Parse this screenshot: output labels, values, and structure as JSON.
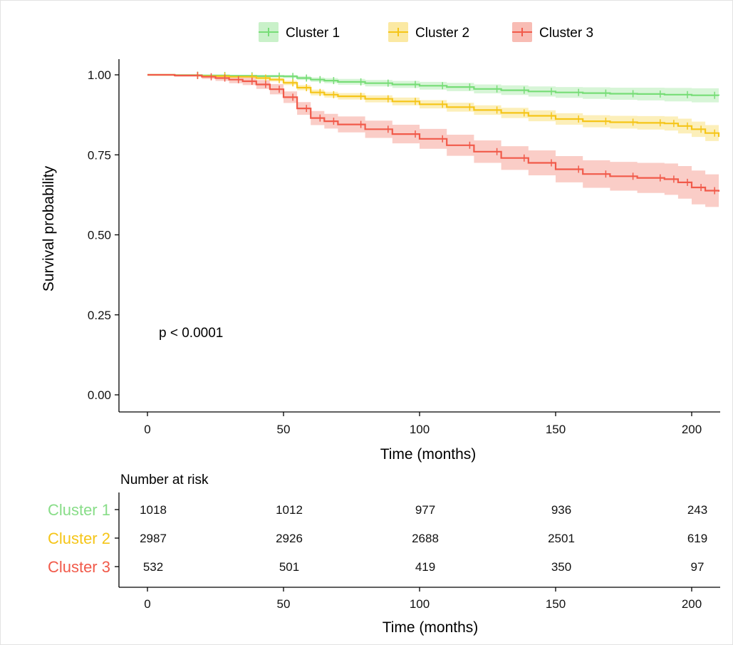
{
  "chart_data": [
    {
      "type": "line",
      "subtype": "kaplan-meier",
      "title": "",
      "xlabel": "Time (months)",
      "ylabel": "Survival probability",
      "xlim": [
        -20,
        210
      ],
      "ylim": [
        -0.03,
        1.05
      ],
      "x_ticks": [
        0,
        50,
        100,
        150,
        200
      ],
      "y_ticks": [
        0.0,
        0.25,
        0.5,
        0.75,
        1.0
      ],
      "y_tick_labels": [
        "0.00",
        "0.25",
        "0.50",
        "0.75",
        "1.00"
      ],
      "grid": false,
      "legend_position": "top",
      "annotation": "p < 0.0001",
      "series": [
        {
          "name": "Cluster 1",
          "color": "#77dd77",
          "band_color": "#c9f1c9",
          "x": [
            0,
            10,
            20,
            30,
            40,
            50,
            55,
            60,
            65,
            70,
            80,
            90,
            100,
            110,
            120,
            130,
            140,
            150,
            160,
            170,
            180,
            190,
            200,
            210
          ],
          "y": [
            1.0,
            0.999,
            0.998,
            0.997,
            0.996,
            0.995,
            0.99,
            0.985,
            0.982,
            0.978,
            0.974,
            0.97,
            0.966,
            0.962,
            0.956,
            0.952,
            0.948,
            0.945,
            0.943,
            0.941,
            0.94,
            0.938,
            0.936,
            0.935
          ],
          "lower": [
            1.0,
            0.998,
            0.996,
            0.994,
            0.992,
            0.99,
            0.984,
            0.978,
            0.974,
            0.969,
            0.964,
            0.959,
            0.954,
            0.949,
            0.942,
            0.937,
            0.932,
            0.928,
            0.925,
            0.922,
            0.92,
            0.917,
            0.914,
            0.91
          ],
          "upper": [
            1.0,
            1.0,
            1.0,
            1.0,
            1.0,
            1.0,
            0.996,
            0.992,
            0.99,
            0.987,
            0.984,
            0.981,
            0.978,
            0.975,
            0.97,
            0.967,
            0.964,
            0.962,
            0.961,
            0.96,
            0.96,
            0.959,
            0.958,
            0.958
          ]
        },
        {
          "name": "Cluster 2",
          "color": "#f5c518",
          "band_color": "#fbe9a3",
          "x": [
            0,
            10,
            20,
            30,
            40,
            45,
            50,
            55,
            60,
            65,
            70,
            80,
            90,
            100,
            110,
            120,
            130,
            140,
            150,
            160,
            170,
            180,
            190,
            195,
            200,
            205,
            210
          ],
          "y": [
            1.0,
            0.998,
            0.996,
            0.994,
            0.99,
            0.985,
            0.975,
            0.96,
            0.945,
            0.938,
            0.933,
            0.925,
            0.917,
            0.908,
            0.899,
            0.89,
            0.881,
            0.872,
            0.862,
            0.855,
            0.852,
            0.85,
            0.848,
            0.84,
            0.83,
            0.818,
            0.806
          ],
          "lower": [
            1.0,
            0.996,
            0.993,
            0.99,
            0.985,
            0.979,
            0.968,
            0.952,
            0.936,
            0.929,
            0.923,
            0.914,
            0.905,
            0.895,
            0.885,
            0.875,
            0.865,
            0.855,
            0.844,
            0.836,
            0.832,
            0.829,
            0.826,
            0.817,
            0.806,
            0.793,
            0.78
          ],
          "upper": [
            1.0,
            1.0,
            0.999,
            0.998,
            0.995,
            0.991,
            0.982,
            0.968,
            0.954,
            0.947,
            0.943,
            0.936,
            0.929,
            0.921,
            0.913,
            0.905,
            0.897,
            0.889,
            0.88,
            0.874,
            0.872,
            0.871,
            0.87,
            0.863,
            0.854,
            0.843,
            0.832
          ]
        },
        {
          "name": "Cluster 3",
          "color": "#f15a4a",
          "band_color": "#f8bcb4",
          "x": [
            0,
            10,
            20,
            25,
            30,
            35,
            40,
            45,
            50,
            55,
            60,
            65,
            70,
            80,
            90,
            100,
            110,
            120,
            130,
            140,
            150,
            160,
            170,
            180,
            190,
            195,
            200,
            205,
            210
          ],
          "y": [
            1.0,
            0.998,
            0.994,
            0.99,
            0.985,
            0.98,
            0.97,
            0.955,
            0.93,
            0.895,
            0.865,
            0.855,
            0.845,
            0.83,
            0.815,
            0.8,
            0.78,
            0.76,
            0.74,
            0.725,
            0.705,
            0.69,
            0.683,
            0.678,
            0.674,
            0.664,
            0.648,
            0.638,
            0.635
          ],
          "lower": [
            1.0,
            0.994,
            0.987,
            0.981,
            0.974,
            0.968,
            0.956,
            0.939,
            0.912,
            0.875,
            0.843,
            0.832,
            0.82,
            0.803,
            0.786,
            0.769,
            0.747,
            0.725,
            0.703,
            0.686,
            0.664,
            0.647,
            0.638,
            0.631,
            0.625,
            0.613,
            0.595,
            0.587,
            0.585
          ],
          "upper": [
            1.0,
            1.0,
            1.0,
            0.999,
            0.996,
            0.992,
            0.984,
            0.971,
            0.948,
            0.915,
            0.887,
            0.878,
            0.87,
            0.857,
            0.844,
            0.831,
            0.813,
            0.795,
            0.777,
            0.764,
            0.746,
            0.733,
            0.728,
            0.725,
            0.723,
            0.715,
            0.701,
            0.689,
            0.685
          ]
        }
      ]
    },
    {
      "type": "table",
      "subtype": "number-at-risk",
      "title": "Number at risk",
      "xlabel": "Time (months)",
      "xlim": [
        -20,
        210
      ],
      "x_ticks": [
        0,
        50,
        100,
        150,
        200
      ],
      "rows": [
        {
          "name": "Cluster 1",
          "color": "#88dd88",
          "values": [
            "1018",
            "1012",
            "977",
            "936",
            "243"
          ]
        },
        {
          "name": "Cluster 2",
          "color": "#f5c518",
          "values": [
            "2987",
            "2926",
            "2688",
            "2501",
            "619"
          ]
        },
        {
          "name": "Cluster 3",
          "color": "#f15a4a",
          "values": [
            "532",
            "501",
            "419",
            "350",
            "97"
          ]
        }
      ]
    }
  ]
}
